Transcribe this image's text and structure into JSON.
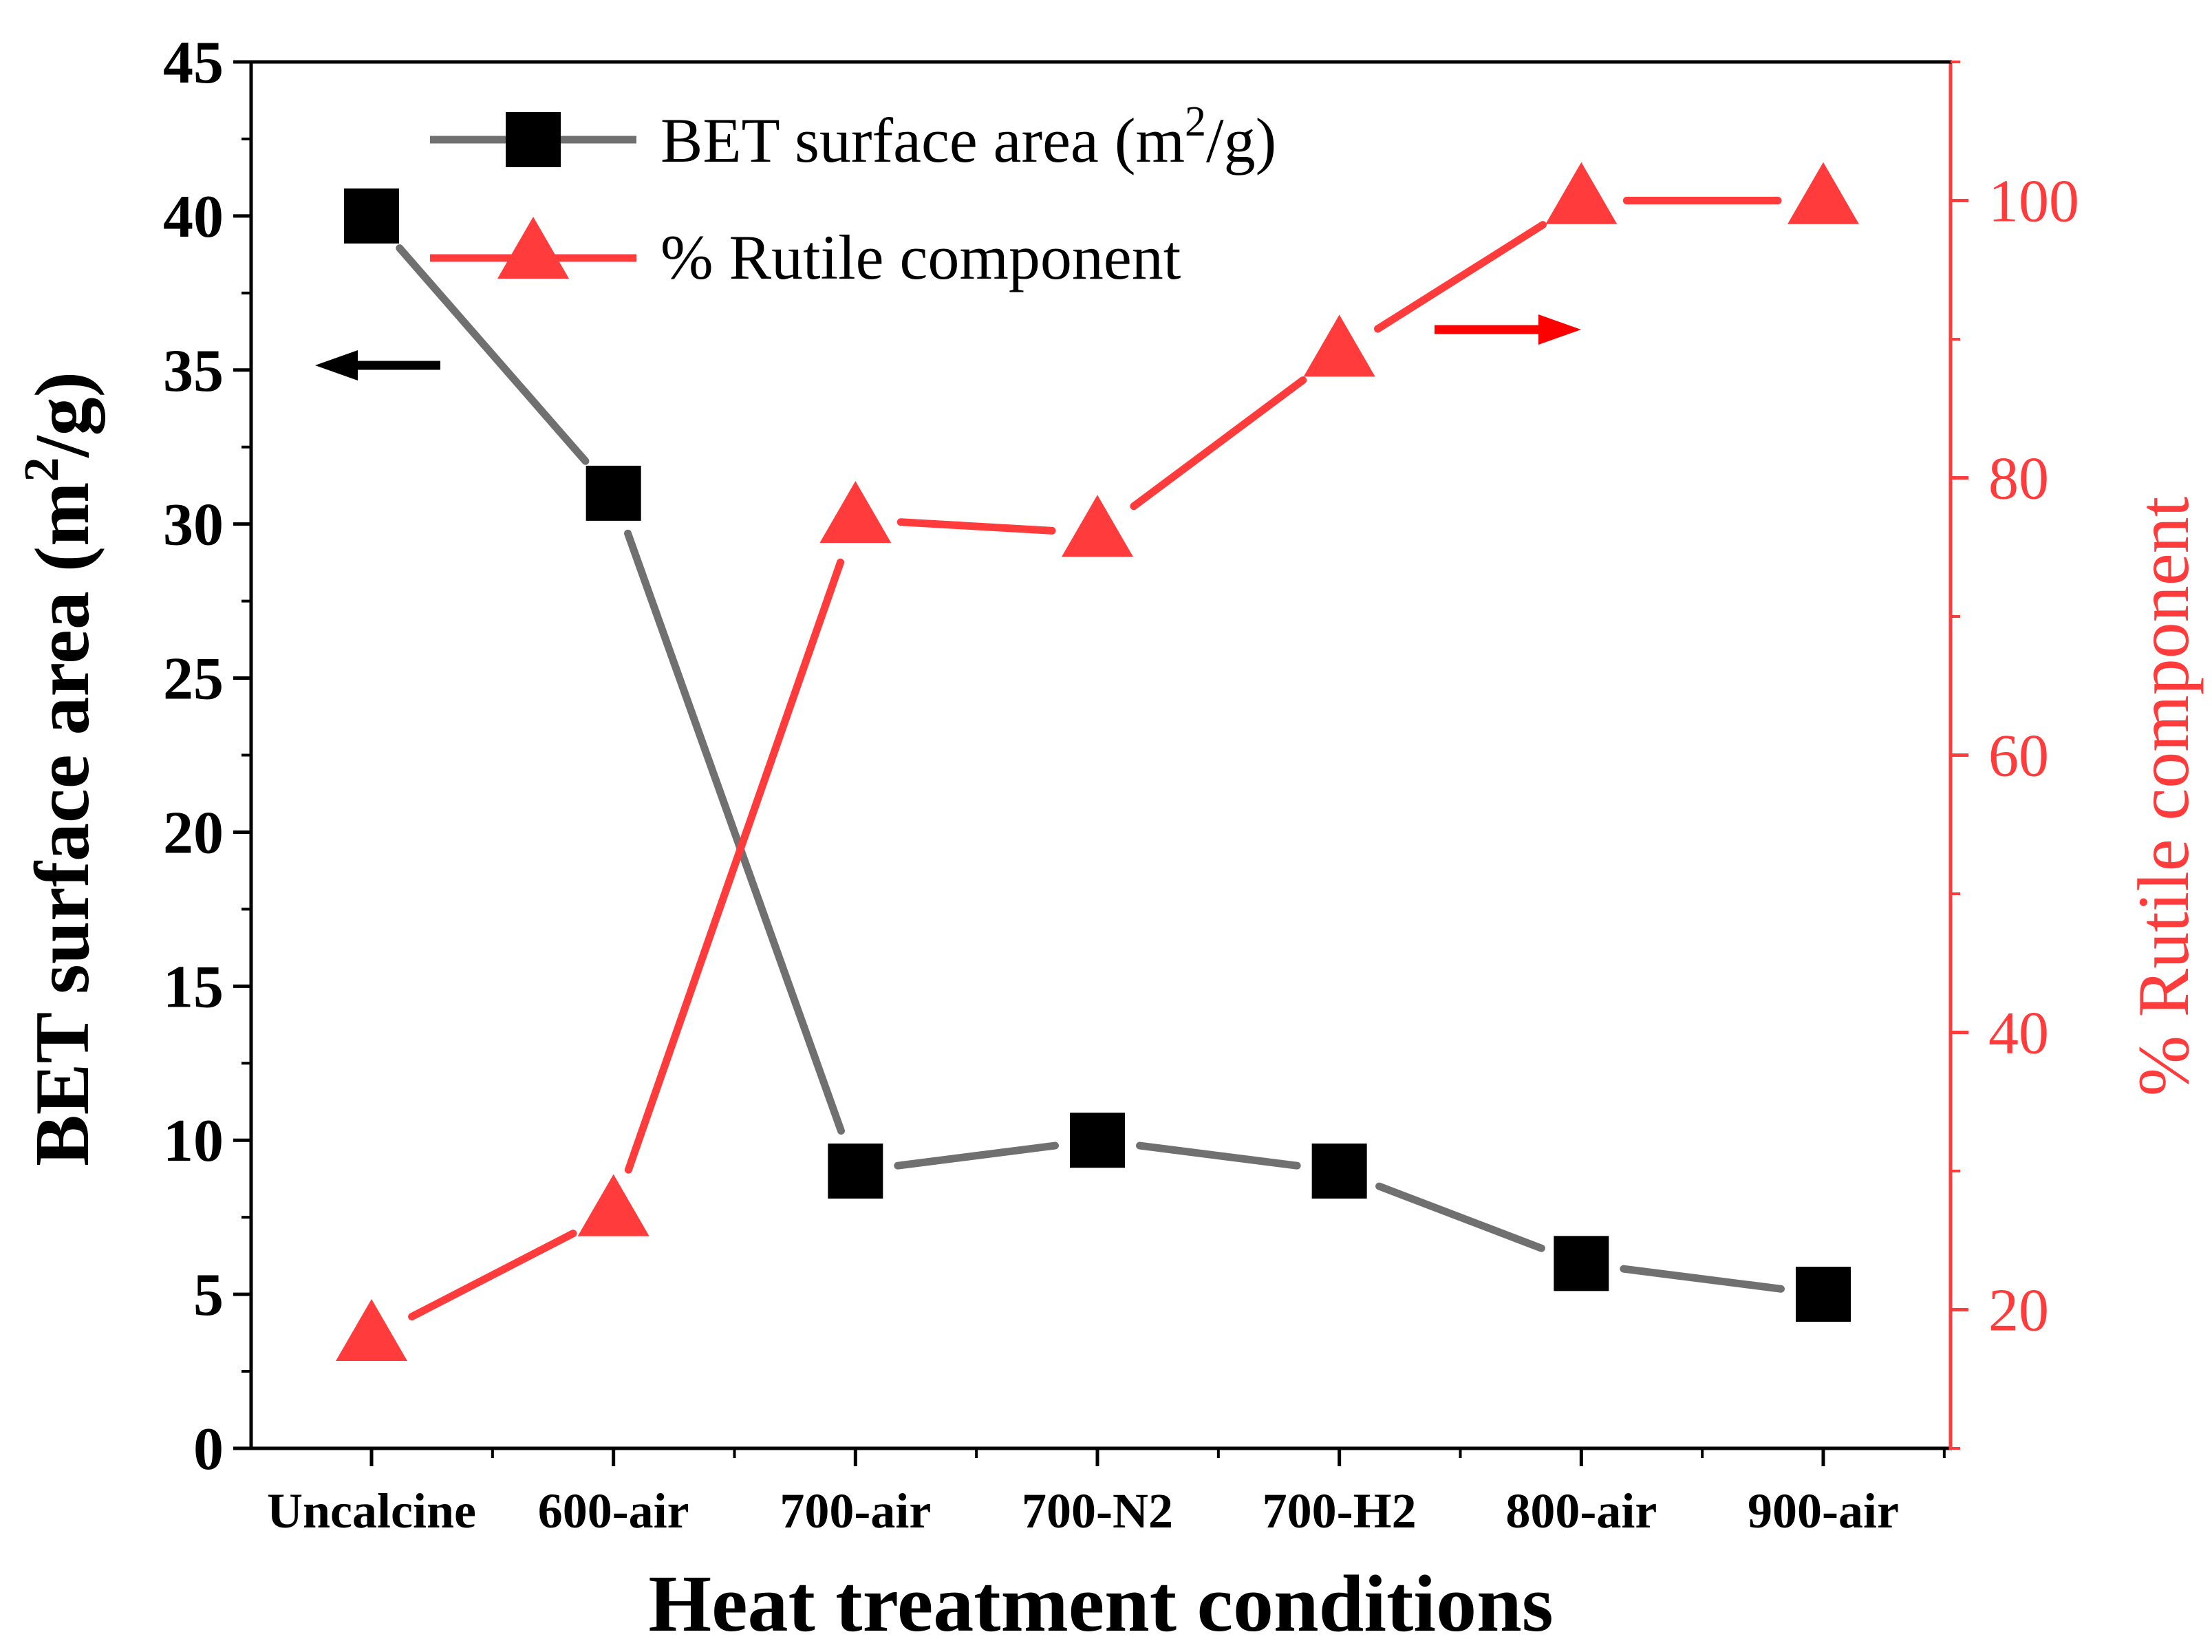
{
  "chart_data": {
    "type": "line",
    "xlabel": "Heat treatment conditions",
    "categories": [
      "Uncalcine",
      "600-air",
      "700-air",
      "700-N2",
      "700-H2",
      "800-air",
      "900-air"
    ],
    "y_left": {
      "label_main": "BET surface area (m",
      "label_sup": "2",
      "label_end": "/g)",
      "ylim": [
        0,
        45
      ],
      "ticks": [
        0,
        5,
        10,
        15,
        20,
        25,
        30,
        35,
        40,
        45
      ],
      "tick_labels": [
        "0",
        "5",
        "10",
        "15",
        "20",
        "25",
        "30",
        "35",
        "40",
        "45"
      ]
    },
    "y_right": {
      "label": "% Rutile component",
      "ylim": [
        10,
        110
      ],
      "ticks": [
        20,
        40,
        60,
        80,
        100
      ],
      "tick_labels": [
        "20",
        "40",
        "60",
        "80",
        "100"
      ]
    },
    "series": [
      {
        "name_main": "BET surface area (m",
        "name_sup": "2",
        "name_end": "/g)",
        "axis": "left",
        "marker": "square",
        "line_color": "#707070",
        "marker_color": "#000000",
        "values": [
          40,
          31,
          9,
          10,
          9,
          6,
          5
        ]
      },
      {
        "name": "% Rutile component",
        "axis": "right",
        "marker": "triangle",
        "line_color": "#ff3b3b",
        "marker_color": "#ff3b3b",
        "values": [
          18,
          27,
          77,
          76,
          89,
          100,
          100
        ]
      }
    ],
    "legend_position": "top-center",
    "grid": false,
    "axis_arrows": [
      {
        "points_to": "left",
        "color": "#000000"
      },
      {
        "points_to": "right",
        "color": "#ff0000"
      }
    ],
    "colors": {
      "left_axis": "#000000",
      "right_axis": "#ff3b3b"
    }
  }
}
